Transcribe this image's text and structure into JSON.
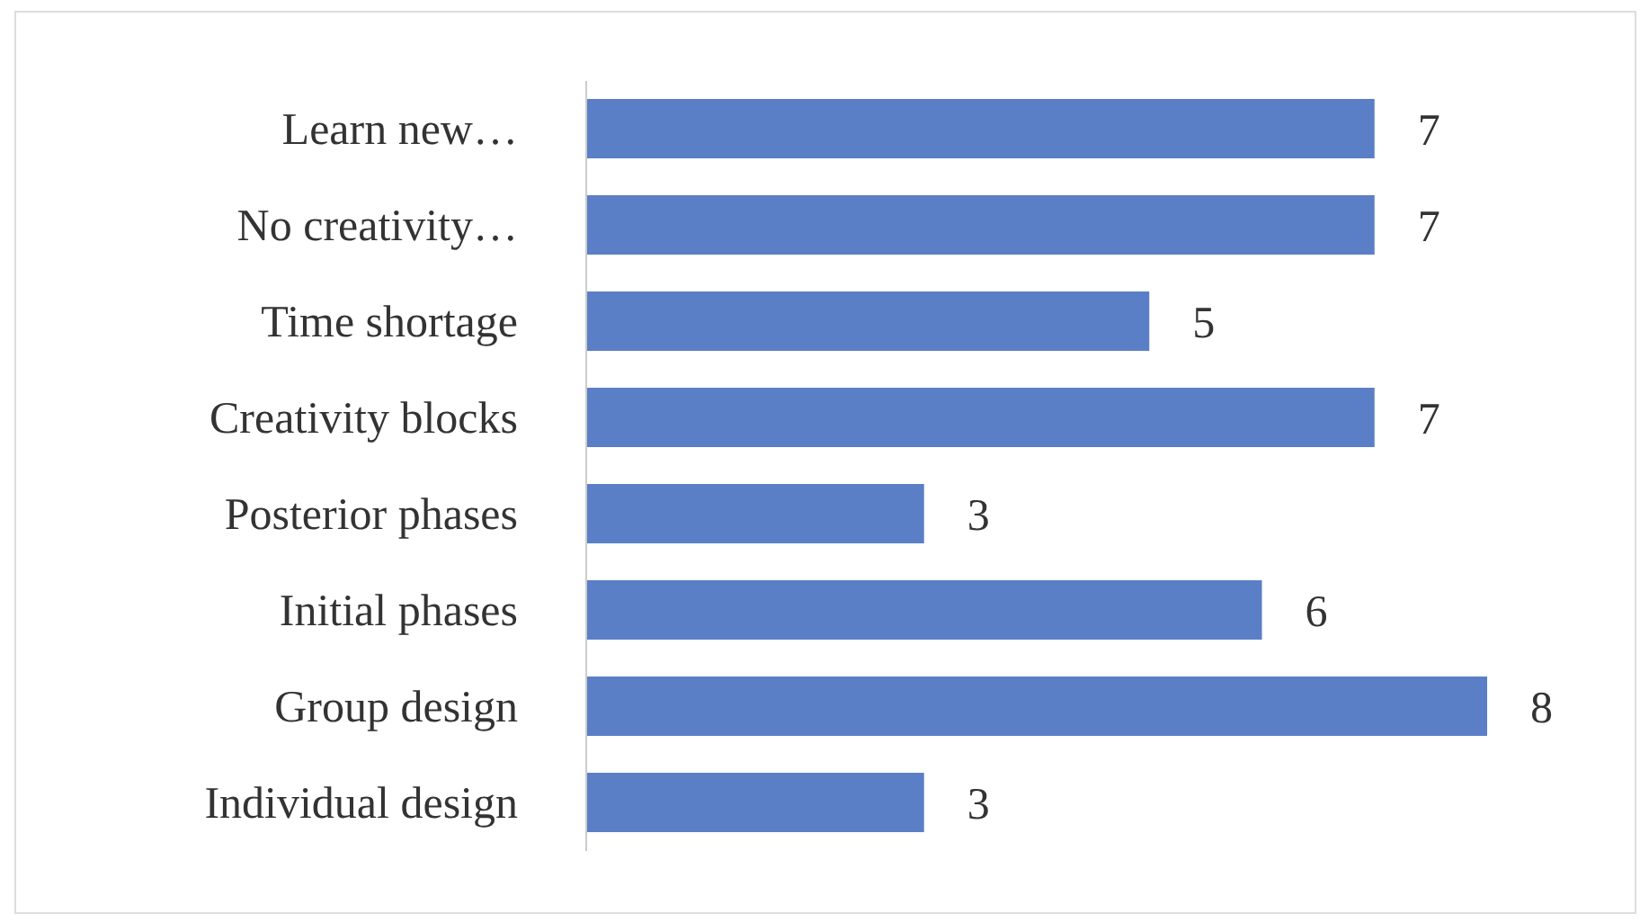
{
  "chart_data": {
    "type": "bar",
    "orientation": "horizontal",
    "categories": [
      "Learn new…",
      "No creativity…",
      "Time shortage",
      "Creativity blocks",
      "Posterior phases",
      "Initial phases",
      "Group design",
      "Individual design"
    ],
    "values": [
      7,
      7,
      5,
      7,
      3,
      6,
      8,
      3
    ],
    "color": "#5b7fc6",
    "data_labels": true,
    "tick_labels": "y"
  }
}
